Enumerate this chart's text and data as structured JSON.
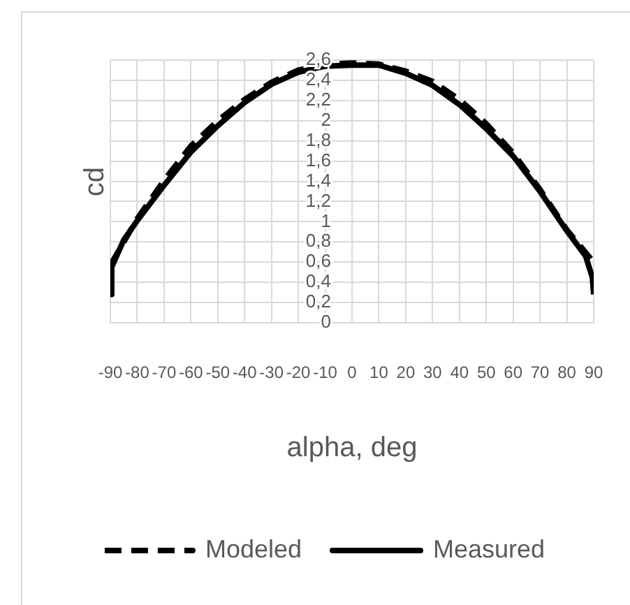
{
  "chart_data": {
    "type": "line",
    "xlabel": "alpha, deg",
    "ylabel": "cd",
    "xlim": [
      -90,
      90
    ],
    "xticks": [
      -90,
      -80,
      -70,
      -60,
      -50,
      -40,
      -30,
      -20,
      -10,
      0,
      10,
      20,
      30,
      40,
      50,
      60,
      70,
      80,
      90
    ],
    "ylim": [
      0,
      2.6
    ],
    "yticks": [
      0,
      {
        "value": 0.2,
        "label": "0,2"
      },
      {
        "value": 0.4,
        "label": "0,4"
      },
      {
        "value": 0.6,
        "label": "0,6"
      },
      {
        "value": 0.8,
        "label": "0,8"
      },
      1,
      {
        "value": 1.2,
        "label": "1,2"
      },
      {
        "value": 1.4,
        "label": "1,4"
      },
      {
        "value": 1.6,
        "label": "1,6"
      },
      {
        "value": 1.8,
        "label": "1,8"
      },
      2,
      {
        "value": 2.2,
        "label": "2,2"
      },
      {
        "value": 2.4,
        "label": "2,4"
      },
      {
        "value": 2.6,
        "label": "2,6"
      }
    ],
    "grid": true,
    "legend": "bottom",
    "marker": "none",
    "series": [
      {
        "name": "Modeled",
        "color": "#000000",
        "line_style": "dashed",
        "x": [
          -90,
          -80,
          -70,
          -60,
          -50,
          -40,
          -30,
          -20,
          -10,
          0,
          10,
          20,
          30,
          40,
          50,
          60,
          70,
          80,
          90
        ],
        "values": [
          0.57,
          1.03,
          1.41,
          1.75,
          2.0,
          2.21,
          2.38,
          2.5,
          2.56,
          2.57,
          2.56,
          2.49,
          2.39,
          2.21,
          1.97,
          1.68,
          1.32,
          0.92,
          0.6
        ]
      },
      {
        "name": "Measured",
        "color": "#000000",
        "line_style": "solid",
        "x": [
          -90,
          -89.5,
          -85,
          -80,
          -70,
          -60,
          -50,
          -40,
          -30,
          -20,
          -10,
          0,
          10,
          20,
          30,
          40,
          50,
          60,
          70,
          80,
          87,
          89.5,
          90
        ],
        "values": [
          0.28,
          0.55,
          0.82,
          1.01,
          1.36,
          1.69,
          1.95,
          2.18,
          2.36,
          2.48,
          2.54,
          2.55,
          2.55,
          2.47,
          2.35,
          2.16,
          1.92,
          1.65,
          1.3,
          0.91,
          0.66,
          0.45,
          0.28
        ]
      }
    ]
  }
}
